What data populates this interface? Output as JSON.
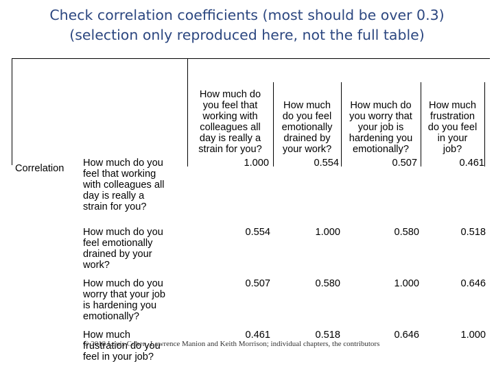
{
  "title": {
    "line1": "Check correlation coefficients (most should be over 0.3)",
    "line2": "(selection only reproduced here, not the full table)"
  },
  "table": {
    "stub_label": "Correlation",
    "column_headers": [
      "How much do\nyou feel that\nworking with\ncolleagues all\nday is really a\nstrain for you?",
      "How much\ndo you feel\nemotionally\ndrained by\nyour work?",
      "How much do\nyou worry that\nyour job is\nhardening you\nemotionally?",
      "How much\nfrustration\ndo you feel\nin your\njob?"
    ],
    "rows": [
      {
        "label": "How much do you\nfeel that working\nwith colleagues all\nday is really a\nstrain for you?",
        "values": [
          "1.000",
          "0.554",
          "0.507",
          "0.461"
        ]
      },
      {
        "label": "How much do you\nfeel emotionally\ndrained by your\nwork?",
        "values": [
          "0.554",
          "1.000",
          "0.580",
          "0.518"
        ]
      },
      {
        "label": "How much do you\nworry that your job\nis hardening you\nemotionally?",
        "values": [
          "0.507",
          "0.580",
          "1.000",
          "0.646"
        ]
      },
      {
        "label": "How much\nfrustration do you\nfeel in your job?",
        "values": [
          "0.461",
          "0.518",
          "0.646",
          "1.000"
        ]
      }
    ]
  },
  "footer": "© 2018 Louis Cohen, Lawrence Manion and Keith Morrison; individual chapters, the contributors"
}
